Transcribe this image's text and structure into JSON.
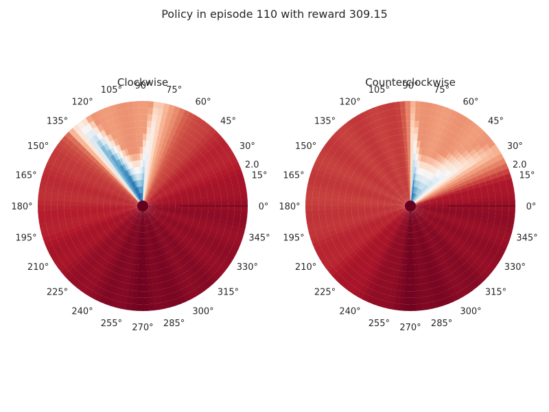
{
  "figure": {
    "suptitle": "Policy in episode 110 with reward 309.15"
  },
  "colormap": {
    "name": "RdBu",
    "stops": [
      "#67001f",
      "#b2182b",
      "#d6604d",
      "#f4a582",
      "#fddbc7",
      "#f7f7f7",
      "#d1e5f0",
      "#92c5de",
      "#4393c3",
      "#2166ac",
      "#053061"
    ]
  },
  "chart_data": [
    {
      "type": "heatmap",
      "projection": "polar",
      "title": "Clockwise",
      "theta_ticks": [
        "0°",
        "15°",
        "30°",
        "45°",
        "60°",
        "75°",
        "90°",
        "105°",
        "120°",
        "135°",
        "150°",
        "165°",
        "180°",
        "195°",
        "210°",
        "225°",
        "240°",
        "255°",
        "270°",
        "285°",
        "300°",
        "315°",
        "330°",
        "345°"
      ],
      "r_tick_labels": [
        "2.0"
      ],
      "r_max": 2.0,
      "grid": false,
      "value_scale": "0 = dark red, 1 = dark blue",
      "center_value": 0.0,
      "angular_profile": [
        {
          "deg": 0,
          "value": 0.06,
          "blue_from_r": 2.0
        },
        {
          "deg": 20,
          "value": 0.1,
          "blue_from_r": 2.0
        },
        {
          "deg": 45,
          "value": 0.13,
          "blue_from_r": 2.0
        },
        {
          "deg": 65,
          "value": 0.2,
          "blue_from_r": 2.0
        },
        {
          "deg": 75,
          "value": 0.3,
          "blue_from_r": 2.0
        },
        {
          "deg": 82,
          "value": 0.45,
          "blue_from_r": 1.6
        },
        {
          "deg": 86,
          "value": 0.55,
          "blue_from_r": 0.9
        },
        {
          "deg": 90,
          "value": 0.8,
          "blue_from_r": 0.3
        },
        {
          "deg": 95,
          "value": 0.92,
          "blue_from_r": 0.1
        },
        {
          "deg": 102,
          "value": 0.95,
          "blue_from_r": 0.1
        },
        {
          "deg": 110,
          "value": 0.9,
          "blue_from_r": 0.3
        },
        {
          "deg": 118,
          "value": 0.82,
          "blue_from_r": 0.8
        },
        {
          "deg": 124,
          "value": 0.75,
          "blue_from_r": 1.3
        },
        {
          "deg": 130,
          "value": 0.45,
          "blue_from_r": 1.8
        },
        {
          "deg": 137,
          "value": 0.2,
          "blue_from_r": 2.0
        },
        {
          "deg": 150,
          "value": 0.14,
          "blue_from_r": 2.0
        },
        {
          "deg": 170,
          "value": 0.13,
          "blue_from_r": 2.0
        },
        {
          "deg": 200,
          "value": 0.1,
          "blue_from_r": 2.0
        },
        {
          "deg": 240,
          "value": 0.05,
          "blue_from_r": 2.0
        },
        {
          "deg": 270,
          "value": 0.02,
          "blue_from_r": 2.0
        },
        {
          "deg": 300,
          "value": 0.04,
          "blue_from_r": 2.0
        },
        {
          "deg": 330,
          "value": 0.06,
          "blue_from_r": 2.0
        },
        {
          "deg": 360,
          "value": 0.06,
          "blue_from_r": 2.0
        }
      ]
    },
    {
      "type": "heatmap",
      "projection": "polar",
      "title": "Counterclockwise",
      "theta_ticks": [
        "0°",
        "15°",
        "30°",
        "45°",
        "60°",
        "75°",
        "90°",
        "105°",
        "120°",
        "135°",
        "150°",
        "165°",
        "180°",
        "195°",
        "210°",
        "225°",
        "240°",
        "255°",
        "270°",
        "285°",
        "300°",
        "315°",
        "330°",
        "345°"
      ],
      "r_tick_labels": [
        "2.0"
      ],
      "r_max": 2.0,
      "grid": false,
      "value_scale": "0 = dark red, 1 = dark blue",
      "center_value": 0.0,
      "angular_profile": [
        {
          "deg": 0,
          "value": 0.06,
          "blue_from_r": 2.0
        },
        {
          "deg": 15,
          "value": 0.1,
          "blue_from_r": 2.0
        },
        {
          "deg": 22,
          "value": 0.2,
          "blue_from_r": 2.0
        },
        {
          "deg": 30,
          "value": 0.3,
          "blue_from_r": 1.8
        },
        {
          "deg": 38,
          "value": 0.5,
          "blue_from_r": 1.0
        },
        {
          "deg": 45,
          "value": 0.58,
          "blue_from_r": 0.6
        },
        {
          "deg": 55,
          "value": 0.68,
          "blue_from_r": 0.3
        },
        {
          "deg": 65,
          "value": 0.78,
          "blue_from_r": 0.15
        },
        {
          "deg": 72,
          "value": 0.88,
          "blue_from_r": 0.1
        },
        {
          "deg": 78,
          "value": 0.92,
          "blue_from_r": 0.1
        },
        {
          "deg": 83,
          "value": 0.85,
          "blue_from_r": 0.4
        },
        {
          "deg": 87,
          "value": 0.5,
          "blue_from_r": 1.0
        },
        {
          "deg": 91,
          "value": 0.25,
          "blue_from_r": 1.8
        },
        {
          "deg": 96,
          "value": 0.16,
          "blue_from_r": 2.0
        },
        {
          "deg": 110,
          "value": 0.15,
          "blue_from_r": 2.0
        },
        {
          "deg": 140,
          "value": 0.15,
          "blue_from_r": 2.0
        },
        {
          "deg": 180,
          "value": 0.15,
          "blue_from_r": 2.0
        },
        {
          "deg": 210,
          "value": 0.12,
          "blue_from_r": 2.0
        },
        {
          "deg": 250,
          "value": 0.06,
          "blue_from_r": 2.0
        },
        {
          "deg": 270,
          "value": 0.02,
          "blue_from_r": 2.0
        },
        {
          "deg": 300,
          "value": 0.04,
          "blue_from_r": 2.0
        },
        {
          "deg": 330,
          "value": 0.06,
          "blue_from_r": 2.0
        },
        {
          "deg": 360,
          "value": 0.06,
          "blue_from_r": 2.0
        }
      ]
    }
  ]
}
